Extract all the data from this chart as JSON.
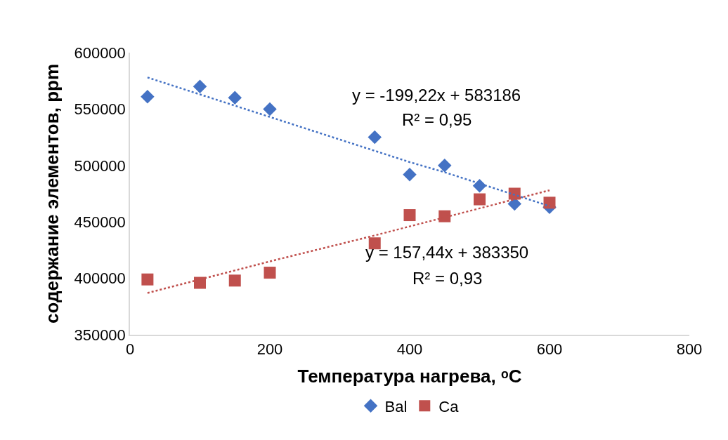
{
  "chart_data": {
    "type": "scatter",
    "xlabel": "Температура нагрева, ᵒС",
    "ylabel": "содержание элементов, ppm",
    "x": [
      25,
      100,
      150,
      200,
      350,
      400,
      450,
      500,
      550,
      600
    ],
    "series": [
      {
        "name": "Bal",
        "color": "#4472c4",
        "marker": "diamond",
        "values": [
          561000,
          570000,
          560000,
          550000,
          525000,
          492000,
          500000,
          482000,
          466000,
          463000
        ]
      },
      {
        "name": "Ca",
        "color": "#c0504d",
        "marker": "square",
        "values": [
          399000,
          396000,
          398000,
          405000,
          431000,
          456000,
          455000,
          470000,
          475000,
          467000
        ]
      },
      {
        "type": "line",
        "color": "#4472c4",
        "line_style": "dotted",
        "values": [
          578000,
          563000,
          553000,
          543000,
          513000,
          503000,
          494000,
          484000,
          474000,
          464000
        ]
      },
      {
        "type": "line",
        "color": "#c0504d",
        "line_style": "dotted",
        "values": [
          387000,
          399000,
          407000,
          415000,
          438000,
          446000,
          454000,
          462000,
          470000,
          478000
        ]
      }
    ],
    "annotations": [
      "y = -199,22x + 583186",
      "R² = 0,95",
      "y = 157,44x + 383350",
      "R² = 0,93"
    ],
    "xlim": [
      0,
      800
    ],
    "xticks": [
      0,
      200,
      400,
      600,
      800
    ],
    "ylim": [
      350000,
      600000
    ],
    "yticks": [
      350000,
      400000,
      450000,
      500000,
      550000,
      600000
    ],
    "grid": false,
    "legend": "bottom"
  }
}
